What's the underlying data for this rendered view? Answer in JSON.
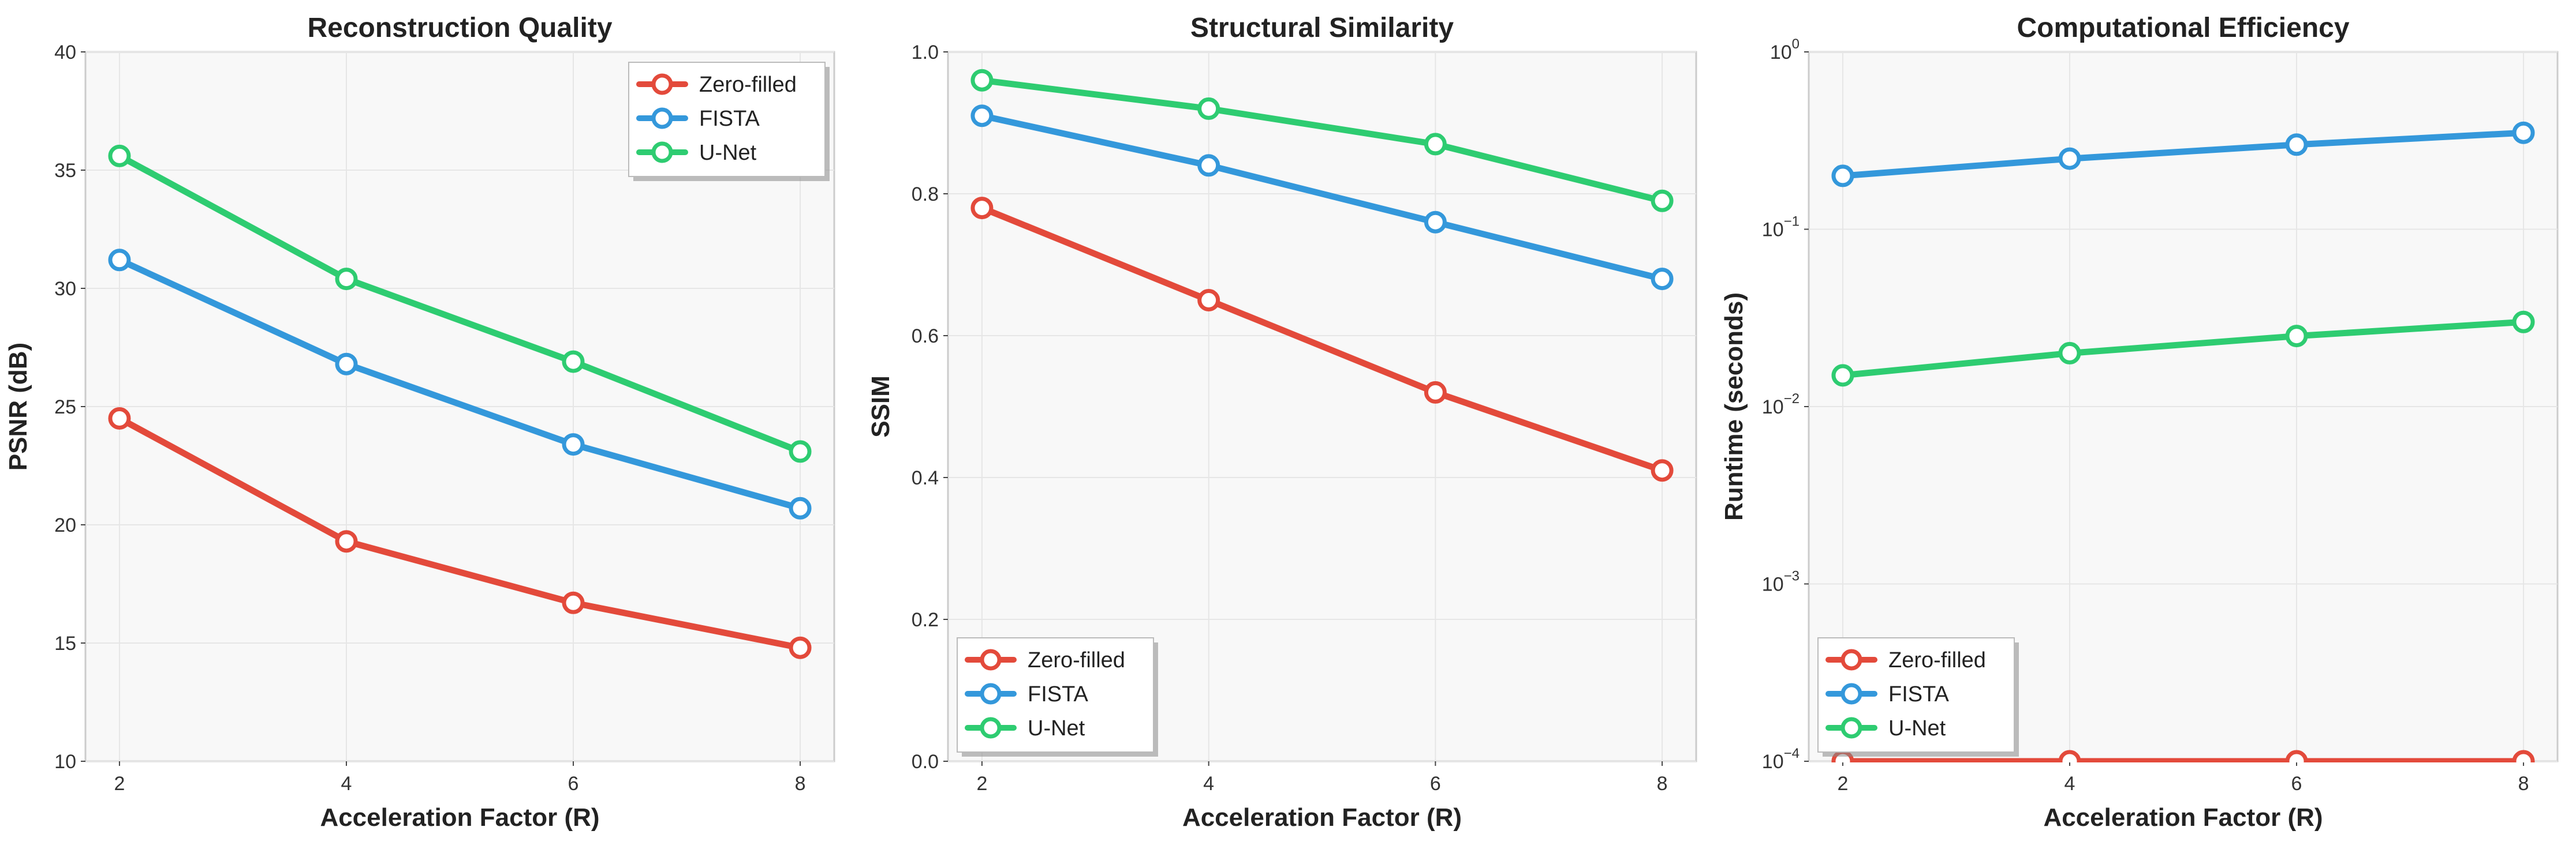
{
  "colors": {
    "zero_filled": "#e34a3b",
    "fista": "#3498db",
    "unet": "#2ecc71"
  },
  "chart_data": [
    {
      "type": "line",
      "title": "Reconstruction Quality",
      "xlabel": "Acceleration Factor (R)",
      "ylabel": "PSNR (dB)",
      "x": [
        2,
        4,
        6,
        8
      ],
      "xticks": [
        "2",
        "4",
        "6",
        "8"
      ],
      "xlim": [
        1.7,
        8.3
      ],
      "ylim": [
        10,
        40
      ],
      "yticks": [
        10,
        15,
        20,
        25,
        30,
        35,
        40
      ],
      "yscale": "linear",
      "grid": true,
      "legend_position": "top-right",
      "series": [
        {
          "name": "Zero-filled",
          "color": "#e34a3b",
          "values": [
            24.5,
            19.3,
            16.7,
            14.8
          ]
        },
        {
          "name": "FISTA",
          "color": "#3498db",
          "values": [
            31.2,
            26.8,
            23.4,
            20.7
          ]
        },
        {
          "name": "U-Net",
          "color": "#2ecc71",
          "values": [
            35.6,
            30.4,
            26.9,
            23.1
          ]
        }
      ]
    },
    {
      "type": "line",
      "title": "Structural Similarity",
      "xlabel": "Acceleration Factor (R)",
      "ylabel": "SSIM",
      "x": [
        2,
        4,
        6,
        8
      ],
      "xticks": [
        "2",
        "4",
        "6",
        "8"
      ],
      "xlim": [
        1.7,
        8.3
      ],
      "ylim": [
        0.0,
        1.0
      ],
      "yticks": [
        0.0,
        0.2,
        0.4,
        0.6,
        0.8,
        1.0
      ],
      "ytick_labels": [
        "0.0",
        "0.2",
        "0.4",
        "0.6",
        "0.8",
        "1.0"
      ],
      "yscale": "linear",
      "grid": true,
      "legend_position": "bottom-left",
      "series": [
        {
          "name": "Zero-filled",
          "color": "#e34a3b",
          "values": [
            0.78,
            0.65,
            0.52,
            0.41
          ]
        },
        {
          "name": "FISTA",
          "color": "#3498db",
          "values": [
            0.91,
            0.84,
            0.76,
            0.68
          ]
        },
        {
          "name": "U-Net",
          "color": "#2ecc71",
          "values": [
            0.96,
            0.92,
            0.87,
            0.79
          ]
        }
      ]
    },
    {
      "type": "line",
      "title": "Computational Efficiency",
      "xlabel": "Acceleration Factor (R)",
      "ylabel": "Runtime (seconds)",
      "x": [
        2,
        4,
        6,
        8
      ],
      "xticks": [
        "2",
        "4",
        "6",
        "8"
      ],
      "xlim": [
        1.7,
        8.3
      ],
      "ylim": [
        0.0001,
        1
      ],
      "yticks": [
        0.0001,
        0.001,
        0.01,
        0.1,
        1
      ],
      "ytick_exponents": [
        "−4",
        "−3",
        "−2",
        "−1",
        "0"
      ],
      "ytick_base": "10",
      "yscale": "log",
      "grid": true,
      "legend_position": "bottom-left",
      "series": [
        {
          "name": "Zero-filled",
          "color": "#e34a3b",
          "values": [
            0.0001,
            0.0001,
            0.0001,
            0.0001
          ]
        },
        {
          "name": "FISTA",
          "color": "#3498db",
          "values": [
            0.2,
            0.25,
            0.3,
            0.35
          ]
        },
        {
          "name": "U-Net",
          "color": "#2ecc71",
          "values": [
            0.015,
            0.02,
            0.025,
            0.03
          ]
        }
      ]
    }
  ]
}
